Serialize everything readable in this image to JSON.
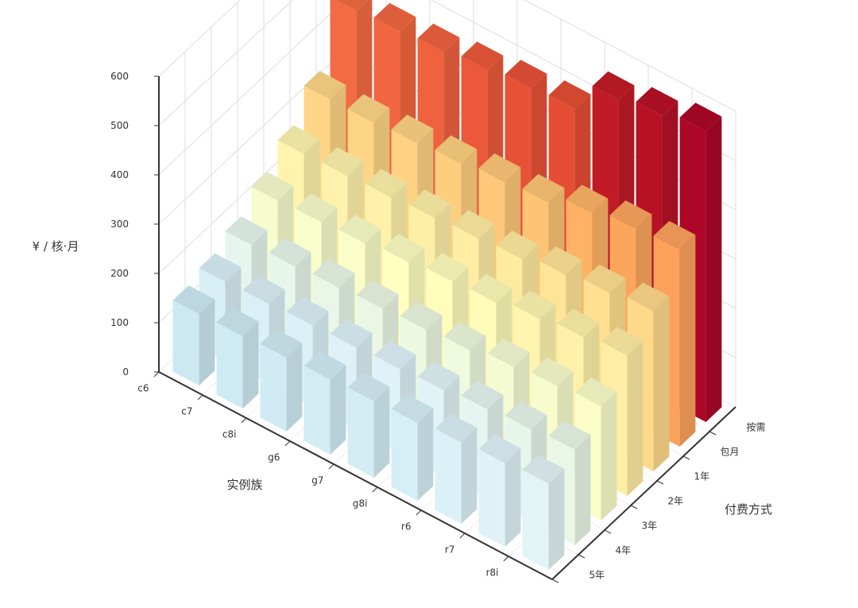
{
  "chart_data": {
    "type": "bar3D",
    "xlabel": "实例族",
    "ylabel": "¥ / 核·月",
    "zlabel": "付费方式",
    "x_categories": [
      "c6",
      "c7",
      "c8i",
      "g6",
      "g7",
      "g8i",
      "r6",
      "r7",
      "r8i"
    ],
    "z_categories": [
      "按需",
      "包月",
      "1年",
      "2年",
      "3年",
      "4年",
      "5年"
    ],
    "ylim": [
      0,
      600
    ],
    "y_ticks": [
      "0",
      "100",
      "200",
      "300",
      "400",
      "500",
      "600"
    ],
    "grid": true,
    "series": [
      {
        "name": "按需",
        "values": [
          460,
          465,
          470,
          480,
          490,
          495,
          560,
          575,
          590
        ]
      },
      {
        "name": "包月",
        "values": [
          330,
          330,
          335,
          340,
          350,
          355,
          380,
          395,
          400
        ]
      },
      {
        "name": "1年",
        "values": [
          270,
          272,
          275,
          280,
          285,
          290,
          305,
          315,
          325
        ]
      },
      {
        "name": "2年",
        "values": [
          225,
          228,
          232,
          240,
          248,
          252,
          265,
          275,
          285
        ]
      },
      {
        "name": "3年",
        "values": [
          185,
          188,
          192,
          196,
          200,
          205,
          218,
          226,
          232
        ]
      },
      {
        "name": "4年",
        "values": [
          160,
          162,
          165,
          167,
          170,
          174,
          182,
          188,
          194
        ]
      },
      {
        "name": "5年",
        "values": [
          145,
          147,
          150,
          152,
          155,
          158,
          165,
          170,
          175
        ]
      }
    ],
    "color_scale": [
      "#abd9e9",
      "#e0f3f8",
      "#ffffbf",
      "#fee090",
      "#fdae61",
      "#f46d43",
      "#d73027",
      "#a50026"
    ],
    "color_range": [
      100,
      600
    ]
  }
}
